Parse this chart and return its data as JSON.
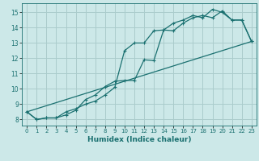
{
  "xlabel": "Humidex (Indice chaleur)",
  "bg_color": "#cce8e8",
  "grid_color": "#aacccc",
  "line_color": "#1a7070",
  "xlim": [
    -0.5,
    23.5
  ],
  "ylim": [
    7.6,
    15.6
  ],
  "xticks": [
    0,
    1,
    2,
    3,
    4,
    5,
    6,
    7,
    8,
    9,
    10,
    11,
    12,
    13,
    14,
    15,
    16,
    17,
    18,
    19,
    20,
    21,
    22,
    23
  ],
  "yticks": [
    8,
    9,
    10,
    11,
    12,
    13,
    14,
    15
  ],
  "curve1_x": [
    0,
    1,
    2,
    3,
    4,
    5,
    6,
    7,
    8,
    9,
    10,
    11,
    12,
    13,
    14,
    15,
    16,
    17,
    18,
    19,
    20,
    21,
    22,
    23
  ],
  "curve1_y": [
    8.5,
    8.0,
    8.1,
    8.1,
    8.3,
    8.6,
    9.3,
    9.6,
    10.15,
    10.5,
    10.55,
    10.55,
    11.9,
    11.85,
    13.85,
    13.8,
    14.3,
    14.65,
    14.8,
    14.65,
    15.1,
    14.5,
    14.5,
    13.1
  ],
  "curve2_x": [
    0,
    1,
    2,
    3,
    4,
    5,
    6,
    7,
    8,
    9,
    10,
    11,
    12,
    13,
    14,
    15,
    16,
    17,
    18,
    19,
    20,
    21,
    22,
    23
  ],
  "curve2_y": [
    8.5,
    8.0,
    8.1,
    8.1,
    8.5,
    8.7,
    9.0,
    9.2,
    9.6,
    10.1,
    12.5,
    13.0,
    13.0,
    13.8,
    13.85,
    14.3,
    14.5,
    14.8,
    14.65,
    15.2,
    15.0,
    14.5,
    14.5,
    13.1
  ],
  "curve3_x": [
    0,
    23
  ],
  "curve3_y": [
    8.5,
    13.1
  ]
}
